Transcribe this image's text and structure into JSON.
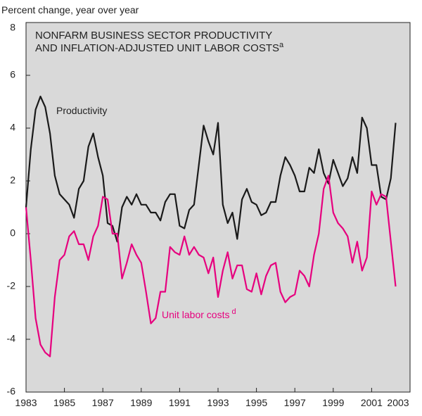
{
  "chart_data": {
    "type": "line",
    "y_axis_label": "Percent change, year over year",
    "title_lines": [
      "NONFARM BUSINESS SECTOR PRODUCTIVITY",
      "AND INFLATION-ADJUSTED UNIT LABOR COSTS"
    ],
    "title_superscript": "a",
    "x": [
      1983.0,
      1983.25,
      1983.5,
      1983.75,
      1984.0,
      1984.25,
      1984.5,
      1984.75,
      1985.0,
      1985.25,
      1985.5,
      1985.75,
      1986.0,
      1986.25,
      1986.5,
      1986.75,
      1987.0,
      1987.25,
      1987.5,
      1987.75,
      1988.0,
      1988.25,
      1988.5,
      1988.75,
      1989.0,
      1989.25,
      1989.5,
      1989.75,
      1990.0,
      1990.25,
      1990.5,
      1990.75,
      1991.0,
      1991.25,
      1991.5,
      1991.75,
      1992.0,
      1992.25,
      1992.5,
      1992.75,
      1993.0,
      1993.25,
      1993.5,
      1993.75,
      1994.0,
      1994.25,
      1994.5,
      1994.75,
      1995.0,
      1995.25,
      1995.5,
      1995.75,
      1996.0,
      1996.25,
      1996.5,
      1996.75,
      1997.0,
      1997.25,
      1997.5,
      1997.75,
      1998.0,
      1998.25,
      1998.5,
      1998.75,
      1999.0,
      1999.25,
      1999.5,
      1999.75,
      2000.0,
      2000.25,
      2000.5,
      2000.75,
      2001.0,
      2001.25,
      2001.5,
      2001.75,
      2002.0,
      2002.25
    ],
    "series": [
      {
        "name": "Productivity",
        "color": "#1a1a1a",
        "values": [
          1.0,
          3.2,
          4.7,
          5.2,
          4.8,
          3.8,
          2.2,
          1.5,
          1.3,
          1.1,
          0.6,
          1.7,
          2.0,
          3.3,
          3.8,
          2.9,
          2.2,
          0.4,
          0.3,
          -0.3,
          1.0,
          1.4,
          1.1,
          1.5,
          1.1,
          1.1,
          0.8,
          0.8,
          0.5,
          1.2,
          1.5,
          1.5,
          0.3,
          0.2,
          0.9,
          1.1,
          2.6,
          4.1,
          3.5,
          3.0,
          4.2,
          1.1,
          0.4,
          0.8,
          -0.2,
          1.3,
          1.7,
          1.2,
          1.1,
          0.7,
          0.8,
          1.2,
          1.2,
          2.2,
          2.9,
          2.6,
          2.2,
          1.6,
          1.6,
          2.5,
          2.3,
          3.2,
          2.3,
          1.9,
          2.8,
          2.3,
          1.8,
          2.1,
          2.9,
          2.3,
          4.4,
          4.0,
          2.6,
          2.6,
          1.4,
          1.3,
          2.1,
          4.2
        ]
      },
      {
        "name": "Unit labor costs",
        "color": "#e6007e",
        "values": [
          1.0,
          -1.0,
          -3.2,
          -4.2,
          -4.5,
          -4.65,
          -2.4,
          -1.0,
          -0.8,
          -0.1,
          0.1,
          -0.4,
          -0.4,
          -1.0,
          -0.1,
          0.3,
          1.4,
          1.3,
          0.0,
          0.0,
          -1.7,
          -1.1,
          -0.4,
          -0.8,
          -1.1,
          -2.2,
          -3.4,
          -3.2,
          -2.2,
          -2.2,
          -0.5,
          -0.7,
          -0.8,
          -0.1,
          -0.8,
          -0.5,
          -0.8,
          -0.9,
          -1.5,
          -0.9,
          -2.4,
          -1.4,
          -0.7,
          -1.7,
          -1.2,
          -1.2,
          -2.1,
          -2.2,
          -1.5,
          -2.3,
          -1.6,
          -1.2,
          -1.1,
          -2.2,
          -2.6,
          -2.4,
          -2.3,
          -1.4,
          -1.6,
          -2.0,
          -0.8,
          0.0,
          1.7,
          2.2,
          0.8,
          0.4,
          0.2,
          -0.1,
          -1.1,
          -0.3,
          -1.4,
          -0.9,
          1.6,
          1.1,
          1.5,
          1.4,
          -0.3,
          -2.0
        ]
      }
    ],
    "annotations": [
      {
        "text": "Productivity"
      },
      {
        "text": "Unit labor costs",
        "superscript": "d"
      }
    ],
    "xlim": [
      1983,
      2003
    ],
    "xticks": [
      1983,
      1985,
      1987,
      1989,
      1991,
      1993,
      1995,
      1997,
      1999,
      2001,
      2003
    ],
    "ylim": [
      -6,
      8
    ],
    "yticks": [
      -6,
      -4,
      -2,
      0,
      2,
      4,
      6,
      8
    ]
  }
}
